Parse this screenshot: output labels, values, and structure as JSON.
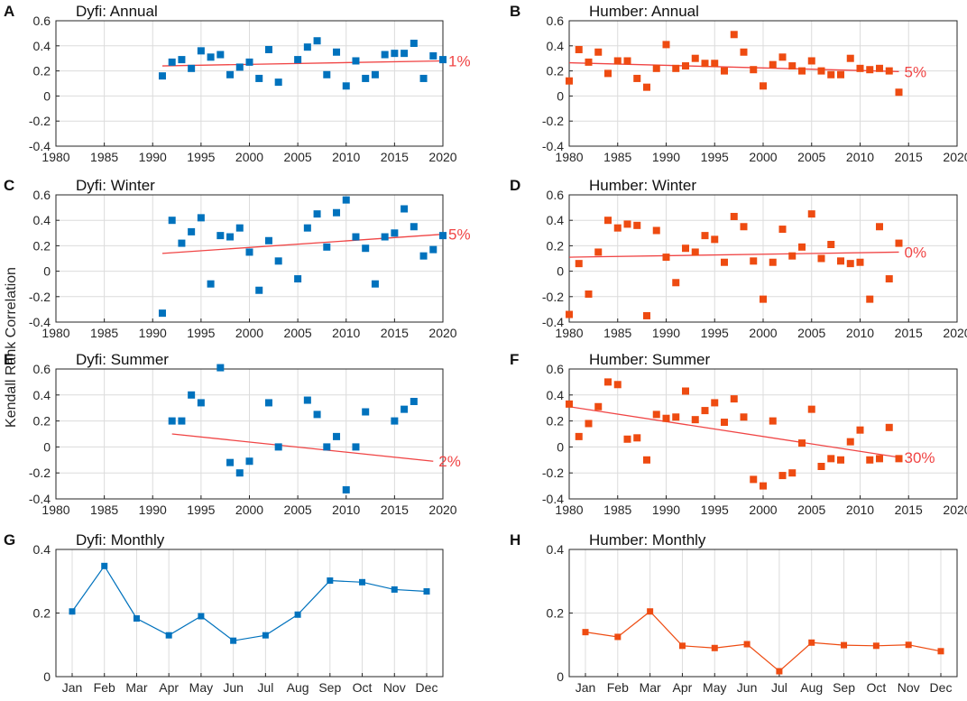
{
  "figure": {
    "ylabel": "Kendall Rank Correlation",
    "colors": {
      "dyfi": "#0072BD",
      "humber": "#EE4B11",
      "trend": "#F04545",
      "grid": "#DCDCDC",
      "axis": "#262626"
    }
  },
  "chart_data": [
    {
      "id": "A",
      "type": "scatter",
      "title": "Dyfi: Annual",
      "river": "dyfi",
      "xlim": [
        1980,
        2020
      ],
      "ylim": [
        -0.4,
        0.6
      ],
      "xticks": [
        1980,
        1985,
        1990,
        1995,
        2000,
        2005,
        2010,
        2015,
        2020
      ],
      "yticks": [
        -0.4,
        -0.2,
        0,
        0.2,
        0.4,
        0.6
      ],
      "x": [
        1991,
        1992,
        1993,
        1994,
        1995,
        1996,
        1997,
        1998,
        1999,
        2000,
        2001,
        2002,
        2003,
        2005,
        2006,
        2007,
        2008,
        2009,
        2010,
        2011,
        2012,
        2013,
        2014,
        2015,
        2016,
        2017,
        2018,
        2019,
        2020
      ],
      "y": [
        0.16,
        0.27,
        0.29,
        0.22,
        0.36,
        0.31,
        0.33,
        0.17,
        0.23,
        0.27,
        0.14,
        0.37,
        0.11,
        0.29,
        0.39,
        0.44,
        0.17,
        0.35,
        0.08,
        0.28,
        0.14,
        0.17,
        0.33,
        0.34,
        0.34,
        0.42,
        0.14,
        0.32,
        0.29
      ],
      "trend": {
        "x": [
          1991,
          2020
        ],
        "y": [
          0.24,
          0.28
        ],
        "label": "1%"
      }
    },
    {
      "id": "B",
      "type": "scatter",
      "title": "Humber: Annual",
      "river": "humber",
      "xlim": [
        1980,
        2020
      ],
      "ylim": [
        -0.4,
        0.6
      ],
      "xticks": [
        1980,
        1985,
        1990,
        1995,
        2000,
        2005,
        2010,
        2015,
        2020
      ],
      "yticks": [
        -0.4,
        -0.2,
        0,
        0.2,
        0.4,
        0.6
      ],
      "x": [
        1980,
        1981,
        1982,
        1983,
        1984,
        1985,
        1986,
        1987,
        1988,
        1989,
        1990,
        1991,
        1992,
        1993,
        1994,
        1995,
        1996,
        1997,
        1998,
        1999,
        2000,
        2001,
        2002,
        2003,
        2004,
        2005,
        2006,
        2007,
        2008,
        2009,
        2010,
        2011,
        2012,
        2013,
        2014
      ],
      "y": [
        0.12,
        0.37,
        0.27,
        0.35,
        0.18,
        0.28,
        0.28,
        0.14,
        0.07,
        0.22,
        0.41,
        0.22,
        0.24,
        0.3,
        0.26,
        0.26,
        0.2,
        0.49,
        0.35,
        0.21,
        0.08,
        0.25,
        0.31,
        0.24,
        0.2,
        0.28,
        0.2,
        0.17,
        0.17,
        0.3,
        0.22,
        0.21,
        0.22,
        0.2,
        0.03
      ],
      "trend": {
        "x": [
          1980,
          2014
        ],
        "y": [
          0.265,
          0.195
        ],
        "label": "5%"
      }
    },
    {
      "id": "C",
      "type": "scatter",
      "title": "Dyfi: Winter",
      "river": "dyfi",
      "xlim": [
        1980,
        2020
      ],
      "ylim": [
        -0.4,
        0.6
      ],
      "xticks": [
        1980,
        1985,
        1990,
        1995,
        2000,
        2005,
        2010,
        2015,
        2020
      ],
      "yticks": [
        -0.4,
        -0.2,
        0,
        0.2,
        0.4,
        0.6
      ],
      "x": [
        1991,
        1992,
        1993,
        1994,
        1995,
        1996,
        1997,
        1998,
        1999,
        2000,
        2001,
        2002,
        2003,
        2005,
        2006,
        2007,
        2008,
        2009,
        2010,
        2011,
        2012,
        2013,
        2014,
        2015,
        2016,
        2017,
        2018,
        2019,
        2020
      ],
      "y": [
        -0.33,
        0.4,
        0.22,
        0.31,
        0.42,
        -0.1,
        0.28,
        0.27,
        0.34,
        0.15,
        -0.15,
        0.24,
        0.08,
        -0.06,
        0.34,
        0.45,
        0.19,
        0.46,
        0.56,
        0.27,
        0.18,
        -0.1,
        0.27,
        0.3,
        0.49,
        0.35,
        0.12,
        0.17,
        0.28
      ],
      "trend": {
        "x": [
          1991,
          2020
        ],
        "y": [
          0.14,
          0.29
        ],
        "label": "5%"
      }
    },
    {
      "id": "D",
      "type": "scatter",
      "title": "Humber: Winter",
      "river": "humber",
      "xlim": [
        1980,
        2020
      ],
      "ylim": [
        -0.4,
        0.6
      ],
      "xticks": [
        1980,
        1985,
        1990,
        1995,
        2000,
        2005,
        2010,
        2015,
        2020
      ],
      "yticks": [
        -0.4,
        -0.2,
        0,
        0.2,
        0.4,
        0.6
      ],
      "x": [
        1980,
        1981,
        1982,
        1983,
        1984,
        1985,
        1986,
        1987,
        1988,
        1989,
        1990,
        1991,
        1992,
        1993,
        1994,
        1995,
        1996,
        1997,
        1998,
        1999,
        2000,
        2001,
        2002,
        2003,
        2004,
        2005,
        2006,
        2007,
        2008,
        2009,
        2010,
        2011,
        2012,
        2013,
        2014
      ],
      "y": [
        -0.34,
        0.06,
        -0.18,
        0.15,
        0.4,
        0.34,
        0.37,
        0.36,
        -0.35,
        0.32,
        0.11,
        -0.09,
        0.18,
        0.15,
        0.28,
        0.25,
        0.07,
        0.43,
        0.35,
        0.08,
        -0.22,
        0.07,
        0.33,
        0.12,
        0.19,
        0.45,
        0.1,
        0.21,
        0.08,
        0.06,
        0.07,
        -0.22,
        0.35,
        -0.06,
        0.22
      ],
      "trend": {
        "x": [
          1980,
          2014
        ],
        "y": [
          0.11,
          0.15
        ],
        "label": "0%"
      }
    },
    {
      "id": "E",
      "type": "scatter",
      "title": "Dyfi: Summer",
      "river": "dyfi",
      "xlim": [
        1980,
        2020
      ],
      "ylim": [
        -0.4,
        0.6
      ],
      "xticks": [
        1980,
        1985,
        1990,
        1995,
        2000,
        2005,
        2010,
        2015,
        2020
      ],
      "yticks": [
        -0.4,
        -0.2,
        0,
        0.2,
        0.4,
        0.6
      ],
      "x": [
        1992,
        1993,
        1994,
        1995,
        1997,
        1998,
        1999,
        2000,
        2002,
        2003,
        2006,
        2007,
        2008,
        2009,
        2010,
        2011,
        2012,
        2015,
        2016,
        2017
      ],
      "y": [
        0.2,
        0.2,
        0.4,
        0.34,
        0.61,
        -0.12,
        -0.2,
        -0.11,
        0.34,
        0.0,
        0.36,
        0.25,
        0.0,
        0.08,
        -0.33,
        0.0,
        0.27,
        0.2,
        0.29,
        0.35
      ],
      "trend": {
        "x": [
          1992,
          2019
        ],
        "y": [
          0.1,
          -0.11
        ],
        "label": "2%"
      }
    },
    {
      "id": "F",
      "type": "scatter",
      "title": "Humber: Summer",
      "river": "humber",
      "xlim": [
        1980,
        2020
      ],
      "ylim": [
        -0.4,
        0.6
      ],
      "xticks": [
        1980,
        1985,
        1990,
        1995,
        2000,
        2005,
        2010,
        2015,
        2020
      ],
      "yticks": [
        -0.4,
        -0.2,
        0,
        0.2,
        0.4,
        0.6
      ],
      "x": [
        1980,
        1981,
        1982,
        1983,
        1984,
        1985,
        1986,
        1987,
        1988,
        1989,
        1990,
        1991,
        1992,
        1993,
        1994,
        1995,
        1996,
        1997,
        1998,
        1999,
        2000,
        2001,
        2002,
        2003,
        2004,
        2005,
        2006,
        2007,
        2008,
        2009,
        2010,
        2011,
        2012,
        2013,
        2014
      ],
      "y": [
        0.33,
        0.08,
        0.18,
        0.31,
        0.5,
        0.48,
        0.06,
        0.07,
        -0.1,
        0.25,
        0.22,
        0.23,
        0.43,
        0.21,
        0.28,
        0.34,
        0.19,
        0.37,
        0.23,
        -0.25,
        -0.3,
        0.2,
        -0.22,
        -0.2,
        0.03,
        0.29,
        -0.15,
        -0.09,
        -0.1,
        0.04,
        0.13,
        -0.1,
        -0.09,
        0.15,
        -0.09
      ],
      "trend": {
        "x": [
          1980,
          2014
        ],
        "y": [
          0.31,
          -0.08
        ],
        "label": "30%"
      }
    },
    {
      "id": "G",
      "type": "line",
      "title": "Dyfi: Monthly",
      "river": "dyfi",
      "categories": [
        "Jan",
        "Feb",
        "Mar",
        "Apr",
        "May",
        "Jun",
        "Jul",
        "Aug",
        "Sep",
        "Oct",
        "Nov",
        "Dec"
      ],
      "values": [
        0.205,
        0.348,
        0.183,
        0.13,
        0.19,
        0.113,
        0.13,
        0.195,
        0.302,
        0.297,
        0.274,
        0.268
      ],
      "ylim": [
        0,
        0.4
      ],
      "yticks": [
        0,
        0.2,
        0.4
      ]
    },
    {
      "id": "H",
      "type": "line",
      "title": "Humber: Monthly",
      "river": "humber",
      "categories": [
        "Jan",
        "Feb",
        "Mar",
        "Apr",
        "May",
        "Jun",
        "Jul",
        "Aug",
        "Sep",
        "Oct",
        "Nov",
        "Dec"
      ],
      "values": [
        0.14,
        0.125,
        0.205,
        0.097,
        0.09,
        0.102,
        0.017,
        0.107,
        0.099,
        0.097,
        0.1,
        0.08
      ],
      "ylim": [
        0,
        0.4
      ],
      "yticks": [
        0,
        0.2,
        0.4
      ]
    }
  ]
}
